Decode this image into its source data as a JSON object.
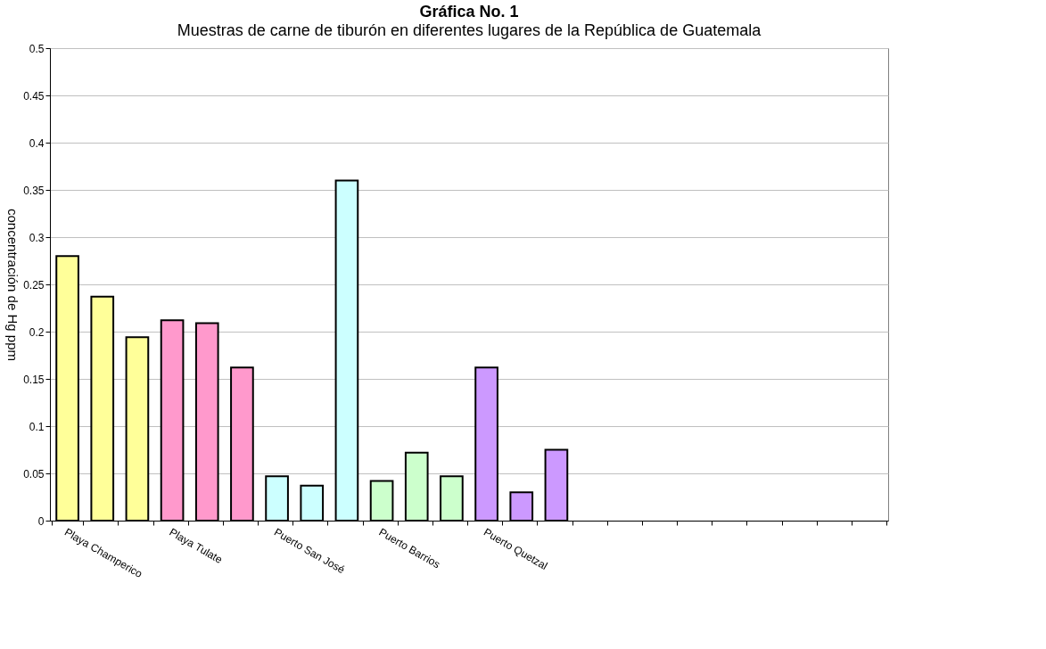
{
  "chart_data": {
    "type": "bar",
    "title": "Gráfica No. 1",
    "subtitle": "Muestras de carne de tiburón en diferentes lugares de la República de Guatemala",
    "ylabel": "concentración de Hg ppm",
    "categories": [
      "Playa Champerico",
      null,
      null,
      "Playa Tulate",
      null,
      null,
      "Puerto San José",
      null,
      null,
      "Puerto Barrios",
      null,
      null,
      "Puerto Quetzal",
      null,
      null,
      null,
      null,
      null,
      null,
      null,
      null,
      null,
      null,
      null
    ],
    "values": [
      0.28,
      0.237,
      0.194,
      0.212,
      0.209,
      0.162,
      0.047,
      0.037,
      0.36,
      0.042,
      0.072,
      0.047,
      0.162,
      0.03,
      0.075,
      null,
      null,
      null,
      null,
      null,
      null,
      null,
      null,
      null
    ],
    "colors": [
      "#ffff99",
      "#ffff99",
      "#ffff99",
      "#ff99cc",
      "#ff99cc",
      "#ff99cc",
      "#ccffff",
      "#ccffff",
      "#ccffff",
      "#ccffcc",
      "#ccffcc",
      "#ccffcc",
      "#cc99ff",
      "#cc99ff",
      "#cc99ff",
      null,
      null,
      null,
      null,
      null,
      null,
      null,
      null,
      null
    ],
    "ylim": [
      0,
      0.5
    ],
    "yticks": [
      0,
      0.05,
      0.1,
      0.15,
      0.2,
      0.25,
      0.3,
      0.35,
      0.4,
      0.45,
      0.5
    ],
    "grid": "y"
  }
}
